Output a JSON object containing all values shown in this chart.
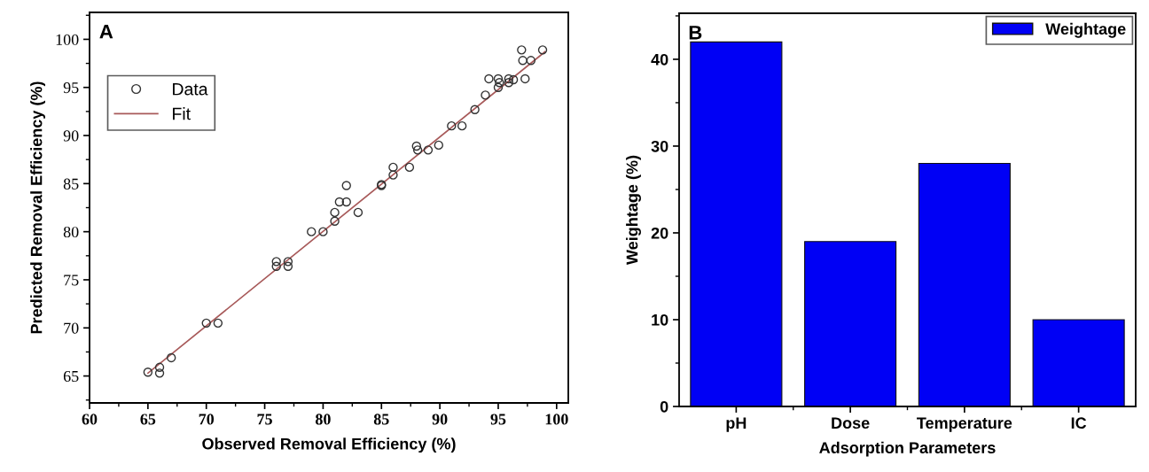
{
  "chart_data": [
    {
      "type": "scatter",
      "xlabel": "Observed Removal Efficiency (%)",
      "ylabel": "Predicted Removal Efficiency (%)",
      "annotations": [
        "A"
      ],
      "xlim": [
        60,
        101
      ],
      "ylim": [
        62.2,
        102.8
      ],
      "xticks": [
        60,
        65,
        70,
        75,
        80,
        85,
        90,
        95,
        100
      ],
      "yticks": [
        65,
        70,
        75,
        80,
        85,
        90,
        95,
        100
      ],
      "legend": "top left",
      "grid": false,
      "series": [
        {
          "name": "Data",
          "type": "scatter",
          "marker": "circle",
          "color": "#333333",
          "x": [
            65,
            66,
            66,
            67,
            70,
            71,
            76,
            76,
            77,
            77,
            79,
            80,
            81,
            81,
            81.4,
            82,
            82,
            83,
            85,
            85,
            86,
            86,
            87.4,
            88,
            88.1,
            89,
            89.9,
            91,
            91.9,
            93,
            93.9,
            94.2,
            95,
            95,
            95.1,
            95.9,
            95.9,
            96.3,
            97.3,
            97,
            97.1,
            97.8,
            98.8
          ],
          "values": [
            65.4,
            65.9,
            65.3,
            66.9,
            70.5,
            70.5,
            76.9,
            76.4,
            76.9,
            76.4,
            80,
            80,
            81.1,
            82,
            83.1,
            83.1,
            84.8,
            82,
            84.8,
            84.9,
            85.9,
            86.7,
            86.7,
            88.9,
            88.5,
            88.5,
            89,
            91,
            91,
            92.7,
            94.2,
            95.9,
            95.9,
            95,
            95.5,
            95.9,
            95.5,
            95.8,
            95.9,
            98.9,
            97.8,
            97.8,
            98.9
          ]
        },
        {
          "name": "Fit",
          "type": "line",
          "marker": "none",
          "line_style": "solid",
          "color": "#a85a5a",
          "x": [
            65,
            99
          ],
          "values": [
            65.3,
            98.7
          ]
        }
      ]
    },
    {
      "type": "bar",
      "xlabel": "Adsorption Parameters",
      "ylabel": "Weightage (%)",
      "annotations": [
        "B"
      ],
      "categories": [
        "pH",
        "Dose",
        "Temperature",
        "IC"
      ],
      "ylim": [
        0,
        45.3
      ],
      "yticks": [
        0,
        10,
        20,
        30,
        40
      ],
      "legend": "top right",
      "grid": false,
      "series": [
        {
          "name": "Weightage",
          "color": "#0000f5",
          "values": [
            42,
            19,
            28,
            10
          ]
        }
      ]
    }
  ]
}
